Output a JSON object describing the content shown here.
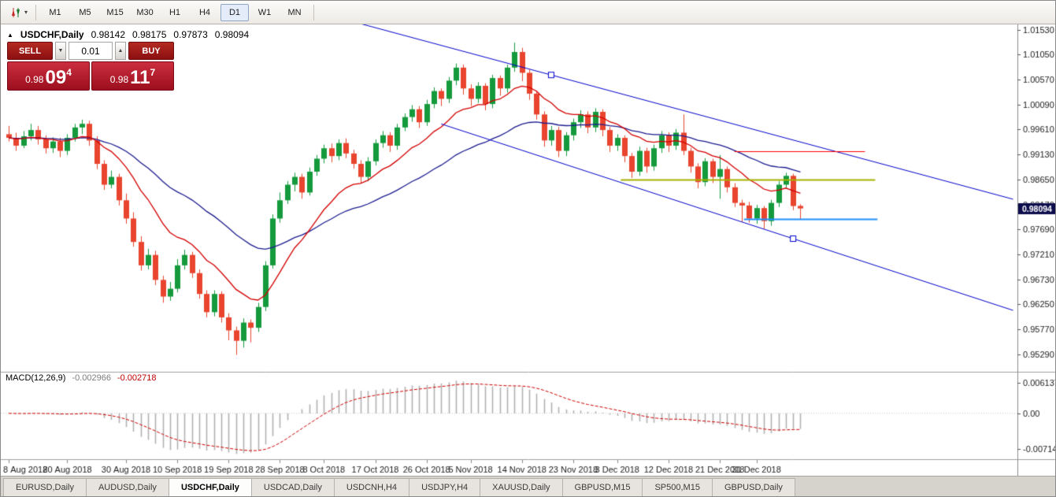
{
  "toolbar": {
    "timeframes": [
      {
        "label": "M1",
        "active": false
      },
      {
        "label": "M5",
        "active": false
      },
      {
        "label": "M15",
        "active": false
      },
      {
        "label": "M30",
        "active": false
      },
      {
        "label": "H1",
        "active": false
      },
      {
        "label": "H4",
        "active": false
      },
      {
        "label": "D1",
        "active": true
      },
      {
        "label": "W1",
        "active": false
      },
      {
        "label": "MN",
        "active": false
      }
    ],
    "quick_trade_caret": "▾"
  },
  "chart_header": {
    "collapse_icon": "▲",
    "symbol": "USDCHF,Daily",
    "open": "0.98142",
    "high": "0.98175",
    "low": "0.97873",
    "close": "0.98094"
  },
  "trade_panel": {
    "sell_label": "SELL",
    "buy_label": "BUY",
    "volume": "0.01",
    "dropdown_icon": "▼",
    "increase_icon": "▲",
    "sell_price": {
      "prefix": "0.98",
      "big": "09",
      "sup": "4"
    },
    "buy_price": {
      "prefix": "0.98",
      "big": "11",
      "sup": "7"
    }
  },
  "macd_panel": {
    "name": "MACD(12,26,9)",
    "main_value": "-0.002966",
    "signal_value": "-0.002718"
  },
  "tabs": [
    {
      "label": "EURUSD,Daily",
      "active": false
    },
    {
      "label": "AUDUSD,Daily",
      "active": false
    },
    {
      "label": "USDCHF,Daily",
      "active": true
    },
    {
      "label": "USDCAD,Daily",
      "active": false
    },
    {
      "label": "USDCNH,H4",
      "active": false
    },
    {
      "label": "USDJPY,H4",
      "active": false
    },
    {
      "label": "XAUUSD,Daily",
      "active": false
    },
    {
      "label": "GBPUSD,M15",
      "active": false
    },
    {
      "label": "SP500,M15",
      "active": false
    },
    {
      "label": "GBPUSD,Daily",
      "active": false
    }
  ],
  "chart_data": {
    "type": "candlestick",
    "symbol": "USDCHF",
    "timeframe": "Daily",
    "current_price": 0.98094,
    "current_price_label": "0.98094",
    "price_axis": {
      "max": 1.016,
      "min": 0.95,
      "ticks": [
        {
          "v": 1.0153,
          "label": "1.01530"
        },
        {
          "v": 1.0105,
          "label": "1.01050"
        },
        {
          "v": 1.0057,
          "label": "1.00570"
        },
        {
          "v": 1.0009,
          "label": "1.00090"
        },
        {
          "v": 0.9961,
          "label": "0.99610"
        },
        {
          "v": 0.9913,
          "label": "0.99130"
        },
        {
          "v": 0.9865,
          "label": "0.98650"
        },
        {
          "v": 0.9817,
          "label": "0.98170"
        },
        {
          "v": 0.9769,
          "label": "0.97690"
        },
        {
          "v": 0.9721,
          "label": "0.97210"
        },
        {
          "v": 0.9673,
          "label": "0.96730"
        },
        {
          "v": 0.9625,
          "label": "0.96250"
        },
        {
          "v": 0.9577,
          "label": "0.95770"
        },
        {
          "v": 0.9529,
          "label": "0.95290"
        }
      ]
    },
    "x_ticks": [
      {
        "i": 0,
        "label": "8 Aug 2018"
      },
      {
        "i": 8,
        "label": "20 Aug 2018"
      },
      {
        "i": 16,
        "label": "30 Aug 2018"
      },
      {
        "i": 23,
        "label": "10 Sep 2018"
      },
      {
        "i": 30,
        "label": "19 Sep 2018"
      },
      {
        "i": 37,
        "label": "28 Sep 2018"
      },
      {
        "i": 43,
        "label": "8 Oct 2018"
      },
      {
        "i": 50,
        "label": "17 Oct 2018"
      },
      {
        "i": 57,
        "label": "26 Oct 2018"
      },
      {
        "i": 63,
        "label": "5 Nov 2018"
      },
      {
        "i": 70,
        "label": "14 Nov 2018"
      },
      {
        "i": 77,
        "label": "23 Nov 2018"
      },
      {
        "i": 83,
        "label": "3 Dec 2018"
      },
      {
        "i": 90,
        "label": "12 Dec 2018"
      },
      {
        "i": 97,
        "label": "21 Dec 2018"
      },
      {
        "i": 102,
        "label": "31 Dec 2018"
      }
    ],
    "candles": [
      [
        0.9952,
        0.9968,
        0.9938,
        0.9945
      ],
      [
        0.9945,
        0.9955,
        0.992,
        0.993
      ],
      [
        0.993,
        0.9958,
        0.9925,
        0.9948
      ],
      [
        0.9948,
        0.9972,
        0.994,
        0.996
      ],
      [
        0.996,
        0.9968,
        0.9932,
        0.9942
      ],
      [
        0.9942,
        0.995,
        0.9915,
        0.9925
      ],
      [
        0.9925,
        0.9946,
        0.9916,
        0.9938
      ],
      [
        0.9938,
        0.9945,
        0.9908,
        0.992
      ],
      [
        0.992,
        0.9952,
        0.9912,
        0.9945
      ],
      [
        0.9945,
        0.9972,
        0.9938,
        0.9965
      ],
      [
        0.9965,
        0.998,
        0.9952,
        0.9972
      ],
      [
        0.9972,
        0.9978,
        0.993,
        0.994
      ],
      [
        0.994,
        0.9948,
        0.9885,
        0.9895
      ],
      [
        0.9895,
        0.9902,
        0.9845,
        0.9855
      ],
      [
        0.9855,
        0.9882,
        0.9848,
        0.987
      ],
      [
        0.987,
        0.9876,
        0.9815,
        0.9825
      ],
      [
        0.9825,
        0.9838,
        0.978,
        0.979
      ],
      [
        0.979,
        0.9802,
        0.9736,
        0.9745
      ],
      [
        0.9745,
        0.9756,
        0.969,
        0.97
      ],
      [
        0.97,
        0.9732,
        0.9692,
        0.972
      ],
      [
        0.972,
        0.9728,
        0.9662,
        0.9672
      ],
      [
        0.9672,
        0.968,
        0.9628,
        0.964
      ],
      [
        0.964,
        0.9668,
        0.9632,
        0.9655
      ],
      [
        0.9655,
        0.9712,
        0.9648,
        0.97
      ],
      [
        0.97,
        0.973,
        0.9692,
        0.972
      ],
      [
        0.972,
        0.9726,
        0.9676,
        0.9685
      ],
      [
        0.9685,
        0.9692,
        0.9636,
        0.9645
      ],
      [
        0.9645,
        0.9652,
        0.96,
        0.961
      ],
      [
        0.961,
        0.9652,
        0.9602,
        0.9645
      ],
      [
        0.9645,
        0.965,
        0.959,
        0.96
      ],
      [
        0.96,
        0.9608,
        0.9556,
        0.9575
      ],
      [
        0.9575,
        0.9582,
        0.9528,
        0.9555
      ],
      [
        0.9555,
        0.9598,
        0.9542,
        0.959
      ],
      [
        0.959,
        0.9596,
        0.9552,
        0.958
      ],
      [
        0.958,
        0.9628,
        0.9572,
        0.962
      ],
      [
        0.962,
        0.9708,
        0.9612,
        0.97
      ],
      [
        0.97,
        0.9798,
        0.9694,
        0.979
      ],
      [
        0.979,
        0.984,
        0.9782,
        0.9825
      ],
      [
        0.9825,
        0.9862,
        0.9818,
        0.9855
      ],
      [
        0.9855,
        0.9878,
        0.9842,
        0.987
      ],
      [
        0.987,
        0.9876,
        0.9828,
        0.984
      ],
      [
        0.984,
        0.9888,
        0.9834,
        0.988
      ],
      [
        0.988,
        0.9912,
        0.9872,
        0.9905
      ],
      [
        0.9905,
        0.9932,
        0.9896,
        0.9925
      ],
      [
        0.9925,
        0.9934,
        0.9898,
        0.991
      ],
      [
        0.991,
        0.9942,
        0.9902,
        0.9935
      ],
      [
        0.9935,
        0.9944,
        0.9906,
        0.9915
      ],
      [
        0.9915,
        0.9922,
        0.9886,
        0.9895
      ],
      [
        0.9895,
        0.9902,
        0.9858,
        0.987
      ],
      [
        0.987,
        0.9908,
        0.9862,
        0.99
      ],
      [
        0.99,
        0.9942,
        0.9892,
        0.9935
      ],
      [
        0.9935,
        0.9958,
        0.9926,
        0.995
      ],
      [
        0.995,
        0.9956,
        0.9918,
        0.993
      ],
      [
        0.993,
        0.9972,
        0.9922,
        0.9965
      ],
      [
        0.9965,
        0.9992,
        0.9958,
        0.9985
      ],
      [
        0.9985,
        1.0008,
        0.9976,
        1.0
      ],
      [
        1.0,
        1.0006,
        0.9964,
        0.9975
      ],
      [
        0.9975,
        1.0018,
        0.9968,
        1.001
      ],
      [
        1.001,
        1.0042,
        1.0002,
        1.0035
      ],
      [
        1.0035,
        1.004,
        1.0006,
        1.002
      ],
      [
        1.002,
        1.0062,
        1.0012,
        1.0055
      ],
      [
        1.0055,
        1.0088,
        1.0046,
        1.008
      ],
      [
        1.008,
        1.0086,
        1.0028,
        1.004
      ],
      [
        1.004,
        1.0048,
        1.0006,
        1.002
      ],
      [
        1.002,
        1.0052,
        1.0012,
        1.0045
      ],
      [
        1.0045,
        1.005,
        0.9998,
        1.001
      ],
      [
        1.001,
        1.0066,
        1.0002,
        1.006
      ],
      [
        1.006,
        1.0065,
        1.0026,
        1.004
      ],
      [
        1.004,
        1.0086,
        1.0032,
        1.008
      ],
      [
        1.008,
        1.0128,
        1.0072,
        1.011
      ],
      [
        1.011,
        1.0118,
        1.0054,
        1.007
      ],
      [
        1.007,
        1.0076,
        1.0018,
        1.003
      ],
      [
        1.003,
        1.0036,
        0.998,
        0.999
      ],
      [
        0.999,
        0.9996,
        0.9928,
        0.994
      ],
      [
        0.994,
        0.9968,
        0.993,
        0.996
      ],
      [
        0.996,
        0.9966,
        0.9908,
        0.992
      ],
      [
        0.992,
        0.9956,
        0.991,
        0.995
      ],
      [
        0.995,
        0.9982,
        0.994,
        0.9975
      ],
      [
        0.9975,
        0.9998,
        0.9964,
        0.999
      ],
      [
        0.999,
        0.9996,
        0.9954,
        0.9965
      ],
      [
        0.9965,
        1.0002,
        0.9956,
        0.9995
      ],
      [
        0.9995,
        1.0,
        0.9948,
        0.996
      ],
      [
        0.996,
        0.9966,
        0.9918,
        0.993
      ],
      [
        0.993,
        0.9952,
        0.992,
        0.9945
      ],
      [
        0.9945,
        0.995,
        0.9898,
        0.991
      ],
      [
        0.991,
        0.9916,
        0.9868,
        0.988
      ],
      [
        0.988,
        0.9928,
        0.9872,
        0.992
      ],
      [
        0.992,
        0.9926,
        0.9878,
        0.989
      ],
      [
        0.989,
        0.9932,
        0.9882,
        0.9925
      ],
      [
        0.9925,
        0.9958,
        0.9916,
        0.995
      ],
      [
        0.995,
        0.9956,
        0.9918,
        0.993
      ],
      [
        0.993,
        0.9962,
        0.9922,
        0.9955
      ],
      [
        0.9955,
        0.999,
        0.9912,
        0.992
      ],
      [
        0.992,
        0.9926,
        0.9878,
        0.989
      ],
      [
        0.989,
        0.9896,
        0.9848,
        0.986
      ],
      [
        0.986,
        0.9906,
        0.9852,
        0.99
      ],
      [
        0.99,
        0.9905,
        0.9858,
        0.987
      ],
      [
        0.987,
        0.9912,
        0.9828,
        0.9885
      ],
      [
        0.9885,
        0.989,
        0.984,
        0.985
      ],
      [
        0.985,
        0.9858,
        0.9812,
        0.982
      ],
      [
        0.982,
        0.9826,
        0.9784,
        0.9815
      ],
      [
        0.9815,
        0.9822,
        0.9782,
        0.979
      ],
      [
        0.979,
        0.9816,
        0.978,
        0.981
      ],
      [
        0.981,
        0.9814,
        0.977,
        0.9785
      ],
      [
        0.9785,
        0.9826,
        0.9776,
        0.982
      ],
      [
        0.982,
        0.9862,
        0.9812,
        0.9855
      ],
      [
        0.9855,
        0.9878,
        0.9848,
        0.9872
      ],
      [
        0.9872,
        0.9876,
        0.9806,
        0.9814
      ],
      [
        0.98142,
        0.98175,
        0.97873,
        0.98094
      ]
    ],
    "moving_averages": [
      {
        "period": 13,
        "color": "#d40000"
      },
      {
        "period": 34,
        "color": "#1c1c8f"
      }
    ],
    "trendlines": [
      {
        "i1": 46,
        "p1": 1.0172,
        "i2": 137,
        "p2": 0.98271,
        "handle_i": 74
      },
      {
        "i1": 59,
        "p1": 0.99717,
        "i2": 137,
        "p2": 0.96135,
        "handle_i": 107
      }
    ],
    "hlines": [
      {
        "price": 0.992,
        "i1": 99,
        "i2": 116.8,
        "color": "#ff0000",
        "width": 1
      },
      {
        "price": 0.98655,
        "i1": 83.5,
        "i2": 118.2,
        "color": "#a6b200",
        "width": 2
      },
      {
        "price": 0.97895,
        "i1": 100.3,
        "i2": 118.5,
        "color": "#1e90ff",
        "width": 2
      }
    ],
    "macd": {
      "fast": 12,
      "slow": 26,
      "signal": 9,
      "axis_max": 0.0075,
      "axis_min": -0.0085,
      "axis_ticks": [
        {
          "v": 0.006137,
          "label": "0.006137"
        },
        {
          "v": 0,
          "label": "0.00"
        },
        {
          "v": -0.007142,
          "label": "-0.007142"
        }
      ]
    },
    "colors": {
      "up_candle": "#149a3c",
      "down_candle": "#e8442e",
      "trendline": "#0000cc",
      "price_tag_bg": "#0d0d4d",
      "macd_histogram": "#b2b2b2",
      "macd_signal": "#d00000",
      "axis_text": "#1a1a1a"
    }
  }
}
